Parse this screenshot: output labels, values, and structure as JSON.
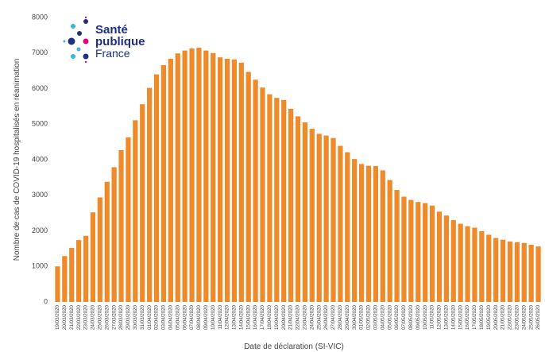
{
  "logo": [
    "Santé",
    "publique",
    "France"
  ],
  "chart_data": {
    "type": "bar",
    "x_label": "Date de déclaration (SI-VIC)",
    "y_label": "Nombre de cas de COVID-19 hospitalisés en réanimation",
    "categories": [
      "19/03/2020",
      "20/03/2020",
      "21/03/2020",
      "22/03/2020",
      "23/03/2020",
      "24/03/2020",
      "25/03/2020",
      "26/03/2020",
      "27/03/2020",
      "28/03/2020",
      "29/03/2020",
      "30/03/2020",
      "31/03/2020",
      "01/04/2020",
      "02/04/2020",
      "03/04/2020",
      "04/04/2020",
      "05/04/2020",
      "06/04/2020",
      "07/04/2020",
      "08/04/2020",
      "09/04/2020",
      "10/04/2020",
      "11/04/2020",
      "12/04/2020",
      "13/04/2020",
      "14/04/2020",
      "15/04/2020",
      "16/04/2020",
      "17/04/2020",
      "18/04/2020",
      "19/04/2020",
      "20/04/2020",
      "21/04/2020",
      "22/04/2020",
      "23/04/2020",
      "24/04/2020",
      "25/04/2020",
      "26/04/2020",
      "27/04/2020",
      "28/04/2020",
      "29/04/2020",
      "30/04/2020",
      "01/05/2020",
      "02/05/2020",
      "03/05/2020",
      "04/05/2020",
      "05/05/2020",
      "06/05/2020",
      "07/05/2020",
      "08/05/2020",
      "09/05/2020",
      "10/05/2020",
      "11/05/2020",
      "12/05/2020",
      "13/05/2020",
      "14/05/2020",
      "15/05/2020",
      "16/05/2020",
      "17/05/2020",
      "18/05/2020",
      "19/05/2020",
      "20/05/2020",
      "21/05/2020",
      "22/05/2020",
      "23/05/2020",
      "24/05/2020",
      "25/05/2020",
      "26/05/2020"
    ],
    "values": [
      1000,
      1290,
      1520,
      1740,
      1860,
      2520,
      2940,
      3380,
      3790,
      4270,
      4630,
      5110,
      5560,
      6020,
      6400,
      6660,
      6840,
      6990,
      7070,
      7130,
      7150,
      7070,
      7000,
      6880,
      6840,
      6820,
      6730,
      6470,
      6250,
      6030,
      5840,
      5740,
      5680,
      5430,
      5220,
      5050,
      4870,
      4730,
      4680,
      4610,
      4390,
      4210,
      4020,
      3880,
      3830,
      3820,
      3700,
      3430,
      3150,
      2960,
      2870,
      2810,
      2780,
      2710,
      2540,
      2430,
      2300,
      2200,
      2130,
      2090,
      1990,
      1890,
      1800,
      1750,
      1700,
      1680,
      1660,
      1610,
      1560
    ],
    "color": "#ee8a2a",
    "ylim": [
      0,
      8000
    ],
    "yticks": [
      0,
      1000,
      2000,
      3000,
      4000,
      5000,
      6000,
      7000,
      8000
    ],
    "grid": false
  }
}
